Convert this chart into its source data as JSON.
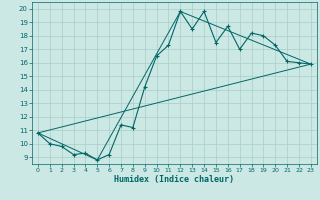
{
  "xlabel": "Humidex (Indice chaleur)",
  "bg_color": "#cce8e4",
  "grid_color": "#aaccc8",
  "line_color": "#006666",
  "xlim": [
    -0.5,
    23.5
  ],
  "ylim": [
    8.5,
    20.5
  ],
  "xticks": [
    0,
    1,
    2,
    3,
    4,
    5,
    6,
    7,
    8,
    9,
    10,
    11,
    12,
    13,
    14,
    15,
    16,
    17,
    18,
    19,
    20,
    21,
    22,
    23
  ],
  "yticks": [
    9,
    10,
    11,
    12,
    13,
    14,
    15,
    16,
    17,
    18,
    19,
    20
  ],
  "main_x": [
    0,
    1,
    2,
    3,
    4,
    5,
    6,
    7,
    8,
    9,
    10,
    11,
    12,
    13,
    14,
    15,
    16,
    17,
    18,
    19,
    20,
    21,
    22,
    23
  ],
  "main_y": [
    10.8,
    10.0,
    9.8,
    9.2,
    9.3,
    8.8,
    9.2,
    11.4,
    11.2,
    14.2,
    16.5,
    17.3,
    19.8,
    18.5,
    19.8,
    17.5,
    18.7,
    17.0,
    18.2,
    18.0,
    17.3,
    16.1,
    16.0,
    15.9
  ],
  "line2_x": [
    0,
    23
  ],
  "line2_y": [
    10.8,
    15.9
  ],
  "line3_x": [
    0,
    5,
    12,
    23
  ],
  "line3_y": [
    10.8,
    8.8,
    19.8,
    15.9
  ]
}
